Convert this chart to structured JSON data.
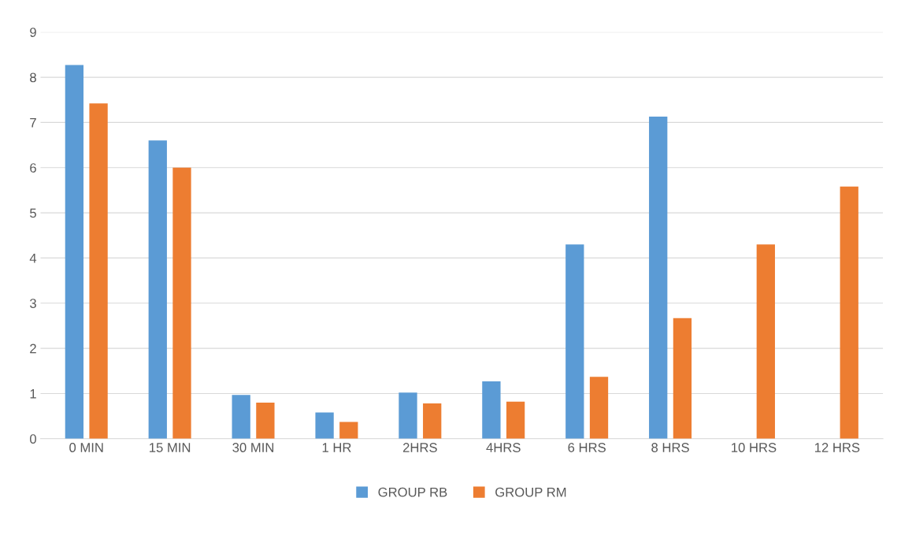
{
  "chart_data": {
    "type": "bar",
    "categories": [
      "0 MIN",
      "15 MIN",
      "30 MIN",
      "1 HR",
      "2HRS",
      "4HRS",
      "6 HRS",
      "8 HRS",
      "10 HRS",
      "12 HRS"
    ],
    "series": [
      {
        "name": "GROUP RB",
        "color": "#5b9bd5",
        "values": [
          8.27,
          6.6,
          0.97,
          0.58,
          1.02,
          1.27,
          4.3,
          7.13,
          null,
          null
        ]
      },
      {
        "name": "GROUP RM",
        "color": "#ed7d31",
        "values": [
          7.42,
          6.0,
          0.8,
          0.37,
          0.78,
          0.82,
          1.37,
          2.67,
          4.3,
          5.58
        ]
      }
    ],
    "ylim": [
      0,
      9
    ],
    "yticks": [
      0,
      1,
      2,
      3,
      4,
      5,
      6,
      7,
      8,
      9
    ],
    "grid": "y",
    "legend": "bottom"
  }
}
